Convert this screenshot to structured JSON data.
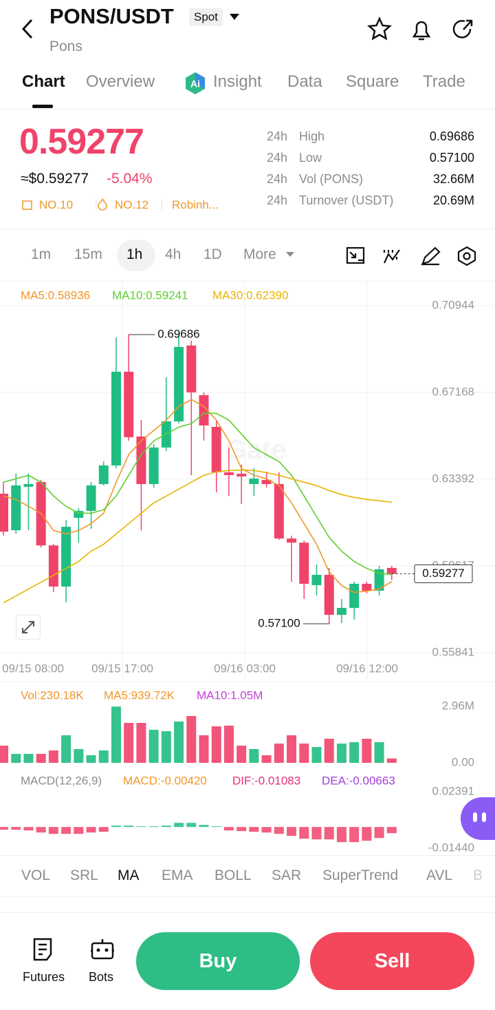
{
  "header": {
    "title": "PONS/USDT",
    "badge": "Spot",
    "subtitle": "Pons"
  },
  "tabs": [
    "Chart",
    "Overview",
    "Insight",
    "Data",
    "Square",
    "Trade"
  ],
  "price": {
    "last": "0.59277",
    "usd": "≈$0.59277",
    "change": "-5.04%",
    "tags": [
      "NO.10",
      "NO.12",
      "Robinh..."
    ]
  },
  "stats": [
    {
      "period": "24h",
      "label": "High",
      "value": "0.69686"
    },
    {
      "period": "24h",
      "label": "Low",
      "value": "0.57100"
    },
    {
      "period": "24h",
      "label": "Vol (PONS)",
      "value": "32.66M"
    },
    {
      "period": "24h",
      "label": "Turnover (USDT)",
      "value": "20.69M"
    }
  ],
  "timeframes": [
    "1m",
    "15m",
    "1h",
    "4h",
    "1D",
    "More"
  ],
  "chart_data": [
    {
      "type": "candlestick",
      "up_color": "#20bd82",
      "down_color": "#f0436a",
      "ylim": [
        0.55841,
        0.70944
      ],
      "yticks": [
        0.70944,
        0.67168,
        0.63392,
        0.59617,
        0.55841
      ],
      "x_labels": [
        "09/15 08:00",
        "09/15 17:00",
        "09/16 03:00",
        "09/16 12:00"
      ],
      "candles": [
        [
          0.6276,
          0.6327,
          0.6094,
          0.6111
        ],
        [
          0.6117,
          0.6363,
          0.6102,
          0.6312
        ],
        [
          0.6306,
          0.6363,
          0.6117,
          0.6318
        ],
        [
          0.6327,
          0.6336,
          0.6042,
          0.6051
        ],
        [
          0.6051,
          0.6057,
          0.5848,
          0.5872
        ],
        [
          0.5872,
          0.6162,
          0.5803,
          0.6132
        ],
        [
          0.6171,
          0.6213,
          0.6063,
          0.6201
        ],
        [
          0.6201,
          0.6327,
          0.6123,
          0.6312
        ],
        [
          0.6318,
          0.6417,
          0.6312,
          0.6399
        ],
        [
          0.6399,
          0.6957,
          0.6387,
          0.6807
        ],
        [
          0.6807,
          0.69686,
          0.6507,
          0.6522
        ],
        [
          0.6525,
          0.6597,
          0.6117,
          0.6318
        ],
        [
          0.6318,
          0.6492,
          0.6303,
          0.6477
        ],
        [
          0.6477,
          0.6783,
          0.6462,
          0.6591
        ],
        [
          0.6591,
          0.6978,
          0.6582,
          0.6915
        ],
        [
          0.6921,
          0.6942,
          0.6357,
          0.6717
        ],
        [
          0.6705,
          0.6717,
          0.6507,
          0.6573
        ],
        [
          0.6567,
          0.6597,
          0.6282,
          0.6369
        ],
        [
          0.6369,
          0.6477,
          0.6267,
          0.6357
        ],
        [
          0.6363,
          0.6402,
          0.6231,
          0.6351
        ],
        [
          0.6318,
          0.6387,
          0.6267,
          0.6342
        ],
        [
          0.6336,
          0.6372,
          0.6303,
          0.6318
        ],
        [
          0.6318,
          0.6369,
          0.6075,
          0.6081
        ],
        [
          0.6081,
          0.6093,
          0.5893,
          0.6063
        ],
        [
          0.6063,
          0.6072,
          0.5818,
          0.5884
        ],
        [
          0.5878,
          0.5968,
          0.5833,
          0.5923
        ],
        [
          0.5923,
          0.5953,
          0.571,
          0.5749
        ],
        [
          0.5749,
          0.5818,
          0.5713,
          0.5779
        ],
        [
          0.5779,
          0.5893,
          0.5728,
          0.5884
        ],
        [
          0.5884,
          0.5893,
          0.5842,
          0.5854
        ],
        [
          0.5854,
          0.5962,
          0.5833,
          0.5947
        ],
        [
          0.5953,
          0.5962,
          0.5901,
          0.59277
        ]
      ],
      "series": [
        {
          "name": "MA5:0.58936",
          "color": "#f0962a",
          "values": [
            0.6266,
            0.6251,
            0.6221,
            0.6191,
            0.6116,
            0.6101,
            0.6116,
            0.6146,
            0.6191,
            0.6326,
            0.6446,
            0.6506,
            0.6551,
            0.6596,
            0.6656,
            0.6686,
            0.6656,
            0.6596,
            0.6506,
            0.6386,
            0.6356,
            0.6341,
            0.6311,
            0.6236,
            0.6146,
            0.6056,
            0.5936,
            0.5876,
            0.5846,
            0.5852,
            0.5861,
            0.58936
          ]
        },
        {
          "name": "MA10:0.59241",
          "color": "#5ccf2e",
          "values": [
            0.6326,
            0.6341,
            0.6356,
            0.6326,
            0.6266,
            0.6221,
            0.6191,
            0.6191,
            0.6206,
            0.6266,
            0.6356,
            0.6446,
            0.6506,
            0.6536,
            0.6566,
            0.6581,
            0.6626,
            0.6626,
            0.6596,
            0.6536,
            0.6476,
            0.6446,
            0.6416,
            0.6356,
            0.6266,
            0.6176,
            0.6086,
            0.6026,
            0.5981,
            0.5951,
            0.593,
            0.59241
          ]
        },
        {
          "name": "MA30:0.62390",
          "color": "#e8b400",
          "values": [
            0.5801,
            0.5831,
            0.5861,
            0.5891,
            0.5921,
            0.5951,
            0.5981,
            0.6026,
            0.6056,
            0.6101,
            0.6146,
            0.6191,
            0.6236,
            0.6266,
            0.6296,
            0.6326,
            0.6356,
            0.6371,
            0.6377,
            0.638,
            0.6377,
            0.6368,
            0.6356,
            0.6341,
            0.6326,
            0.6311,
            0.629,
            0.6272,
            0.626,
            0.6251,
            0.6245,
            0.6239
          ]
        }
      ],
      "annotations": [
        {
          "index": 10,
          "value": 0.69686
        },
        {
          "index": 26,
          "value": {
            "value": 0.571,
            "label": "0.57100"
          }
        }
      ],
      "last_price": 0.59277
    },
    {
      "type": "bar",
      "legend": [
        {
          "text": "Vol:230.18K",
          "color": "#f0962a"
        },
        {
          "text": "MA5:939.72K",
          "color": "#f0962a"
        },
        {
          "text": "MA10:1.05M",
          "color": "#c23fd6"
        }
      ],
      "ylim": [
        0,
        2960000
      ],
      "yticks": [
        {
          "value": 2960000,
          "label": "2.96M"
        },
        {
          "value": 0,
          "label": "0.00"
        }
      ],
      "values": [
        902000,
        469000,
        469000,
        469000,
        650000,
        1444000,
        722000,
        397000,
        650000,
        2950000,
        2094000,
        2094000,
        1733000,
        1660000,
        2166000,
        2455000,
        1444000,
        1913000,
        1950000,
        902000,
        722000,
        397000,
        1010000,
        1444000,
        1010000,
        830000,
        1263000,
        1010000,
        1083000,
        1263000,
        1083000,
        230180
      ]
    },
    {
      "type": "bar",
      "legend": [
        {
          "text": "MACD(12,26,9)",
          "color": "#8c8c8c"
        },
        {
          "text": "MACD:-0.00420",
          "color": "#f0962a"
        },
        {
          "text": "DIF:-0.01083",
          "color": "#e0307a"
        },
        {
          "text": "DEA:-0.00663",
          "color": "#a13fd6"
        }
      ],
      "ylim": [
        -0.0144,
        0.02391
      ],
      "yticks": [
        0.02391,
        {
          "value": -0.0144,
          "label": "-0.01440"
        }
      ],
      "values": [
        -0.00187,
        -0.00187,
        -0.00234,
        -0.00374,
        -0.00467,
        -0.00467,
        -0.00467,
        -0.00374,
        -0.00327,
        0.00093,
        0.00093,
        0.00047,
        0.00047,
        0.00093,
        0.0028,
        0.0028,
        0.0014,
        0.00047,
        -0.00234,
        -0.0028,
        -0.00327,
        -0.00374,
        -0.00467,
        -0.00607,
        -0.00794,
        -0.00841,
        -0.00841,
        -0.01027,
        -0.01027,
        -0.00934,
        -0.00747,
        -0.0042
      ]
    }
  ],
  "indicators": [
    "VOL",
    "SRL",
    "MA",
    "EMA",
    "BOLL",
    "SAR",
    "SuperTrend",
    "AVL",
    "B"
  ],
  "footer": {
    "futures": "Futures",
    "bots": "Bots",
    "buy": "Buy",
    "sell": "Sell"
  }
}
